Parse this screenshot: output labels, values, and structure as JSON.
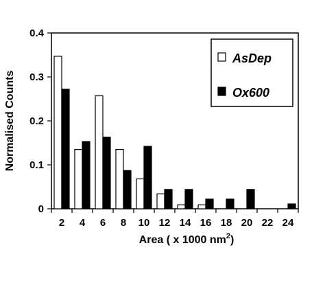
{
  "chart_data": {
    "type": "bar",
    "categories": [
      "2",
      "4",
      "6",
      "8",
      "10",
      "12",
      "14",
      "16",
      "18",
      "20",
      "22",
      "24"
    ],
    "series": [
      {
        "name": "AsDep",
        "color": "#ffffff",
        "values": [
          0.347,
          0.135,
          0.257,
          0.135,
          0.068,
          0.034,
          0.009,
          0.009,
          0,
          0,
          0,
          0
        ]
      },
      {
        "name": "Ox600",
        "color": "#000000",
        "values": [
          0.272,
          0.153,
          0.163,
          0.087,
          0.142,
          0.044,
          0.044,
          0.022,
          0.022,
          0.044,
          0,
          0.011
        ]
      }
    ],
    "xlabel": "Area ( x 1000 nm",
    "xlabel_sup": "2",
    "xlabel_end": ")",
    "ylabel": "Normalised Counts",
    "ylim": [
      0,
      0.4
    ],
    "yticks": [
      "0",
      "0.1",
      "0.2",
      "0.3",
      "0.4"
    ],
    "grid": false,
    "legend_position": "top-right"
  }
}
